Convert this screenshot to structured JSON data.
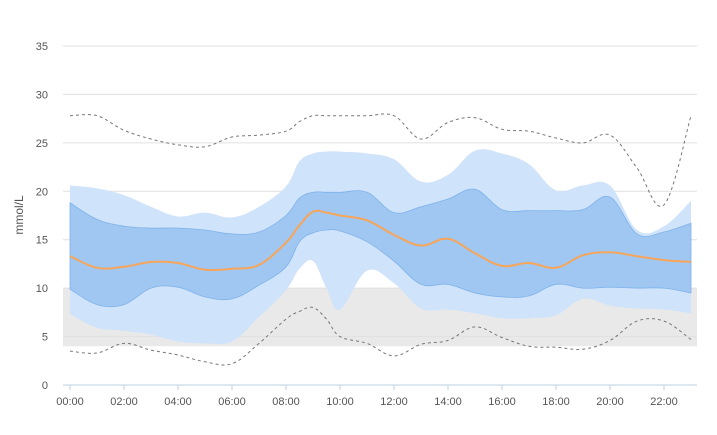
{
  "chart_data": {
    "type": "area",
    "ylabel": "mmol/L",
    "ylim": [
      0,
      35
    ],
    "yticks": [
      0,
      5,
      10,
      15,
      20,
      25,
      30,
      35
    ],
    "xticks": [
      "00:00",
      "02:00",
      "04:00",
      "06:00",
      "08:00",
      "10:00",
      "12:00",
      "14:00",
      "16:00",
      "18:00",
      "20:00",
      "22:00"
    ],
    "grid": true,
    "target_range": [
      4,
      10
    ],
    "x_hours": [
      0,
      1,
      2,
      3,
      4,
      5,
      6,
      7,
      8,
      8.5,
      9,
      9.5,
      10,
      11,
      12,
      13,
      14,
      15,
      16,
      17,
      18,
      19,
      20,
      21,
      22,
      23
    ],
    "series": [
      {
        "role": "p90",
        "values": [
          20.6,
          20.3,
          19.6,
          18.4,
          17.4,
          17.8,
          17.3,
          18.4,
          20.5,
          23.1,
          23.9,
          24.1,
          24.1,
          23.9,
          23.3,
          21.0,
          21.7,
          24.2,
          23.9,
          22.8,
          20.1,
          20.6,
          20.6,
          16.0,
          16.4,
          19.0
        ]
      },
      {
        "role": "p75",
        "values": [
          18.8,
          17.1,
          16.4,
          16.2,
          16.2,
          16.0,
          15.6,
          15.8,
          17.5,
          19.3,
          19.9,
          19.9,
          19.9,
          19.9,
          17.8,
          18.4,
          19.2,
          20.2,
          18.1,
          18.0,
          18.0,
          18.1,
          19.4,
          15.6,
          15.8,
          16.7
        ]
      },
      {
        "role": "median",
        "values": [
          13.3,
          12.1,
          12.2,
          12.7,
          12.6,
          11.9,
          12.0,
          12.4,
          14.7,
          16.5,
          17.9,
          17.8,
          17.5,
          17.0,
          15.5,
          14.4,
          15.1,
          13.6,
          12.3,
          12.6,
          12.1,
          13.4,
          13.7,
          13.3,
          12.9,
          12.7
        ]
      },
      {
        "role": "p25",
        "values": [
          9.9,
          8.3,
          8.3,
          10.0,
          10.1,
          9.1,
          8.9,
          10.3,
          12.2,
          14.8,
          15.7,
          16.0,
          15.9,
          14.8,
          12.8,
          10.4,
          10.4,
          9.5,
          9.1,
          9.2,
          10.4,
          10.0,
          10.1,
          10.0,
          10.0,
          9.5
        ]
      },
      {
        "role": "p10",
        "values": [
          7.3,
          5.9,
          5.6,
          5.2,
          4.5,
          4.3,
          4.5,
          7.0,
          9.8,
          12.0,
          12.8,
          10.0,
          7.8,
          11.8,
          10.5,
          7.9,
          7.8,
          7.4,
          6.9,
          6.9,
          7.2,
          8.9,
          8.2,
          7.9,
          7.8,
          7.4
        ]
      },
      {
        "role": "max",
        "values": [
          27.8,
          27.8,
          26.3,
          25.4,
          24.8,
          24.6,
          25.6,
          25.8,
          26.2,
          27.2,
          27.8,
          27.8,
          27.8,
          27.8,
          27.8,
          25.4,
          27.1,
          27.6,
          26.4,
          26.2,
          25.5,
          25.0,
          25.8,
          22.4,
          18.6,
          27.8
        ]
      },
      {
        "role": "min",
        "values": [
          3.5,
          3.3,
          4.3,
          3.6,
          3.1,
          2.4,
          2.2,
          4.3,
          6.8,
          7.6,
          8.0,
          6.8,
          5.0,
          4.3,
          3.0,
          4.2,
          4.6,
          6.0,
          4.9,
          4.0,
          3.9,
          3.7,
          4.6,
          6.6,
          6.6,
          4.7
        ]
      }
    ],
    "colors": {
      "outer_band": "#cfe3fa",
      "inner_band": "#9fc7f1",
      "inner_band_edge": "#7fb2ea",
      "median_line": "#f6a55a",
      "minmax_line": "#777777",
      "target_fill": "#e9e9e9",
      "grid": "#e0e0e0",
      "axis": "#bdd0e6"
    }
  }
}
